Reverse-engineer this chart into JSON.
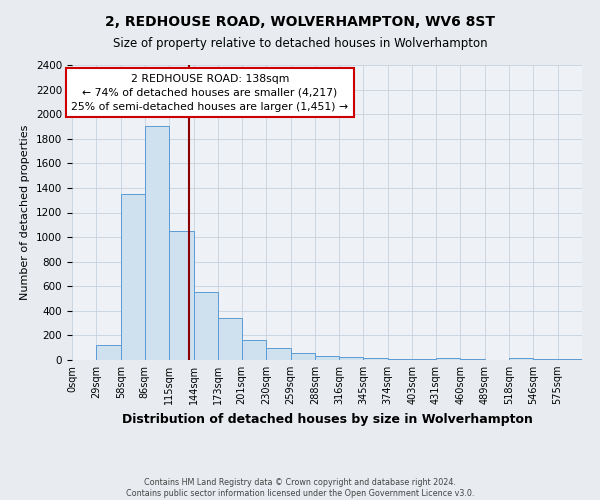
{
  "title": "2, REDHOUSE ROAD, WOLVERHAMPTON, WV6 8ST",
  "subtitle": "Size of property relative to detached houses in Wolverhampton",
  "xlabel": "Distribution of detached houses by size in Wolverhampton",
  "ylabel": "Number of detached properties",
  "bar_color": "#cfe0ef",
  "bar_edge_color": "#5b9bd5",
  "bins": [
    0,
    29,
    58,
    86,
    115,
    144,
    173,
    201,
    230,
    259,
    288,
    316,
    345,
    374,
    403,
    431,
    460,
    489,
    518,
    546,
    575,
    604
  ],
  "heights": [
    0,
    125,
    1350,
    1900,
    1050,
    550,
    340,
    160,
    100,
    60,
    30,
    25,
    15,
    10,
    5,
    20,
    5,
    0,
    15,
    5,
    10
  ],
  "tick_labels": [
    "0sqm",
    "29sqm",
    "58sqm",
    "86sqm",
    "115sqm",
    "144sqm",
    "173sqm",
    "201sqm",
    "230sqm",
    "259sqm",
    "288sqm",
    "316sqm",
    "345sqm",
    "374sqm",
    "403sqm",
    "431sqm",
    "460sqm",
    "489sqm",
    "518sqm",
    "546sqm",
    "575sqm"
  ],
  "property_size": 138,
  "vline_color": "#8b0000",
  "annotation_title": "2 REDHOUSE ROAD: 138sqm",
  "annotation_line1": "← 74% of detached houses are smaller (4,217)",
  "annotation_line2": "25% of semi-detached houses are larger (1,451) →",
  "annotation_box_color": "white",
  "annotation_box_edge": "#cc0000",
  "ylim": [
    0,
    2400
  ],
  "yticks": [
    0,
    200,
    400,
    600,
    800,
    1000,
    1200,
    1400,
    1600,
    1800,
    2000,
    2200,
    2400
  ],
  "footer_line1": "Contains HM Land Registry data © Crown copyright and database right 2024.",
  "footer_line2": "Contains public sector information licensed under the Open Government Licence v3.0.",
  "background_color": "#e8ecf0",
  "plot_bg_color": "#eef2f7",
  "grid_color": "#c0ccd8"
}
